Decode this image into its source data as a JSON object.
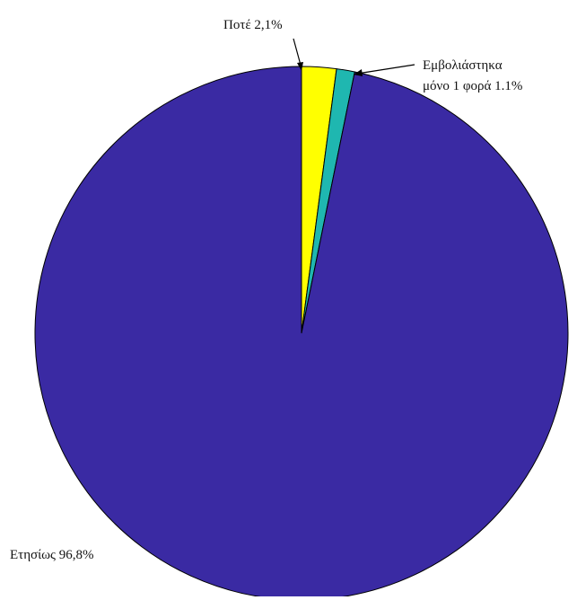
{
  "chart_data": {
    "type": "pie",
    "title": "",
    "slices": [
      {
        "label": "Ποτέ",
        "value": 2.1,
        "display": "2,1%",
        "color": "#ffff00"
      },
      {
        "label": "Εμβολιάστηκα μόνο 1 φορά",
        "value": 1.1,
        "display": "1.1%",
        "color": "#1fb7b0"
      },
      {
        "label": "Ετησίως",
        "value": 96.8,
        "display": "96,8%",
        "color": "#3a2aa3"
      }
    ],
    "labels": {
      "never": "Ποτέ 2,1%",
      "once_line1": "Εμβολιάστηκα",
      "once_line2": "μόνο 1 φορά 1.1%",
      "annual": "Ετησίως 96,8%"
    }
  }
}
